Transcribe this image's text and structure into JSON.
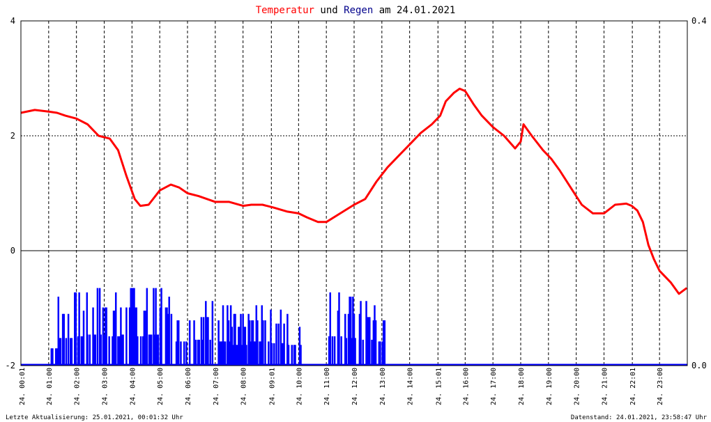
{
  "chart_data": {
    "type": "line",
    "title": {
      "parts": [
        {
          "text": "Temperatur",
          "color": "#ff0000"
        },
        {
          "text": " und ",
          "color": "#000000"
        },
        {
          "text": "Regen",
          "color": "#00008b"
        },
        {
          "text": " am 24.01.2021",
          "color": "#000000"
        }
      ]
    },
    "x_range_hours": [
      0,
      24
    ],
    "x_tick_labels": [
      "24. 00:01",
      "24. 01:00",
      "24. 02:00",
      "24. 03:00",
      "24. 04:00",
      "24. 05:00",
      "24. 06:00",
      "24. 07:00",
      "24. 08:00",
      "24. 09:01",
      "24. 10:00",
      "24. 11:00",
      "24. 12:00",
      "24. 13:00",
      "24. 14:00",
      "24. 15:01",
      "24. 16:00",
      "24. 17:00",
      "24. 18:00",
      "24. 19:00",
      "24. 20:00",
      "24. 21:00",
      "24. 22:01",
      "24. 23:00"
    ],
    "x_tick_hours": [
      0.02,
      1,
      2,
      3,
      4,
      5,
      6,
      7,
      8,
      9.02,
      10,
      11,
      12,
      13,
      14,
      15.02,
      16,
      17,
      18,
      19,
      20,
      21,
      22.02,
      23
    ],
    "y_left": {
      "range": [
        -2,
        4
      ],
      "ticks": [
        4,
        2,
        0,
        -2
      ],
      "labels": [
        "4",
        "2",
        "0",
        "-2"
      ]
    },
    "y_right": {
      "range": [
        0.0,
        0.4
      ],
      "labels": [
        "0.4",
        "0.0"
      ]
    },
    "grid": true,
    "series": [
      {
        "name": "Temperatur",
        "axis": "left",
        "color": "#ff0000",
        "x": [
          0,
          0.5,
          1,
          1.3,
          1.6,
          2,
          2.4,
          2.8,
          3.2,
          3.5,
          3.8,
          4.1,
          4.3,
          4.6,
          5,
          5.4,
          5.7,
          6,
          6.4,
          7,
          7.5,
          8,
          8.3,
          8.7,
          9.1,
          9.6,
          10,
          10.3,
          10.7,
          11,
          11.5,
          12,
          12.4,
          12.8,
          13.2,
          13.6,
          14,
          14.4,
          14.8,
          15.1,
          15.3,
          15.6,
          15.8,
          16,
          16.3,
          16.6,
          17,
          17.4,
          17.8,
          18,
          18.1,
          18.4,
          18.8,
          19.1,
          19.4,
          19.8,
          20.2,
          20.6,
          21,
          21.4,
          21.8,
          22,
          22.2,
          22.4,
          22.6,
          22.8,
          23,
          23.4,
          23.7,
          23.98
        ],
        "y": [
          2.4,
          2.45,
          2.42,
          2.4,
          2.35,
          2.3,
          2.2,
          2.0,
          1.95,
          1.75,
          1.3,
          0.9,
          0.78,
          0.8,
          1.05,
          1.15,
          1.1,
          1.0,
          0.95,
          0.85,
          0.85,
          0.78,
          0.8,
          0.8,
          0.75,
          0.68,
          0.65,
          0.58,
          0.5,
          0.5,
          0.65,
          0.8,
          0.9,
          1.2,
          1.45,
          1.65,
          1.85,
          2.05,
          2.2,
          2.35,
          2.6,
          2.75,
          2.82,
          2.78,
          2.55,
          2.35,
          2.15,
          2.0,
          1.78,
          1.9,
          2.2,
          2.0,
          1.75,
          1.6,
          1.4,
          1.1,
          0.8,
          0.65,
          0.65,
          0.8,
          0.82,
          0.78,
          0.7,
          0.5,
          0.1,
          -0.15,
          -0.35,
          -0.55,
          -0.75,
          -0.65
        ]
      },
      {
        "name": "Regen",
        "axis": "right",
        "color": "#0000ff",
        "rain_events": [
          [
            1.1,
            1.35,
            0.05
          ],
          [
            1.35,
            1.9,
            0.08
          ],
          [
            1.9,
            2.4,
            0.085
          ],
          [
            2.4,
            3.1,
            0.09
          ],
          [
            3.1,
            3.6,
            0.085
          ],
          [
            3.6,
            4.2,
            0.09
          ],
          [
            4.2,
            4.5,
            0.085
          ],
          [
            4.5,
            5.3,
            0.09
          ],
          [
            5.3,
            5.6,
            0.08
          ],
          [
            5.6,
            6.3,
            0.07
          ],
          [
            6.3,
            7.0,
            0.075
          ],
          [
            7.0,
            7.6,
            0.07
          ],
          [
            7.6,
            8.2,
            0.06
          ],
          [
            8.2,
            9.0,
            0.07
          ],
          [
            9.0,
            9.6,
            0.065
          ],
          [
            9.6,
            10.1,
            0.06
          ],
          [
            11.1,
            11.6,
            0.085
          ],
          [
            11.6,
            12.2,
            0.08
          ],
          [
            12.2,
            12.7,
            0.075
          ],
          [
            12.7,
            13.1,
            0.07
          ]
        ]
      }
    ]
  },
  "footer": {
    "left": "Letzte Aktualisierung: 25.01.2021, 00:01:32 Uhr",
    "right": "Datenstand: 24.01.2021, 23:58:47 Uhr"
  }
}
